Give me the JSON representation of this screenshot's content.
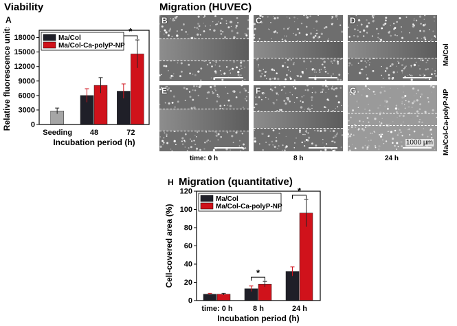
{
  "headers": {
    "viability": "Viability",
    "migration": "Migration (HUVEC)",
    "quantitative": "Migration (quantitative)"
  },
  "colors": {
    "ma_col": "#1f1f28",
    "ma_col_ca": "#d0121b",
    "seeding": "#a6a6a6"
  },
  "micrographs": {
    "panels": [
      {
        "letter": "B",
        "gap": "wide"
      },
      {
        "letter": "C",
        "gap": "narrow"
      },
      {
        "letter": "D",
        "gap": "narrow"
      },
      {
        "letter": "E",
        "gap": "wide"
      },
      {
        "letter": "F",
        "gap": "narrow"
      },
      {
        "letter": "G",
        "gap": "closed"
      }
    ],
    "row_labels": [
      "Ma/Col",
      "Ma/Col-Ca-polyP-NP"
    ],
    "time_labels": [
      "time: 0 h",
      "8 h",
      "24 h"
    ],
    "scale_bar": "1000 µm"
  },
  "chart_data": [
    {
      "type": "bar",
      "panel_label": "A",
      "title": "",
      "xlabel": "Incubation period (h)",
      "ylabel": "Relative fluorescence units",
      "ylim": [
        0,
        19500
      ],
      "yticks": [
        0,
        3000,
        6000,
        9000,
        12000,
        15000,
        18000
      ],
      "categories": [
        "Seeding",
        "48",
        "72"
      ],
      "legend": [
        "Ma/Col",
        "Ma/Col-Ca-polyP-NP"
      ],
      "legend_position": "top-left",
      "series": [
        {
          "name": "Seeding",
          "color": "seeding",
          "points": [
            {
              "category": "Seeding",
              "value": 2800,
              "error": 600
            }
          ]
        },
        {
          "name": "Ma/Col",
          "color": "ma_col",
          "points": [
            {
              "category": "48",
              "value": 6000,
              "error": 1400
            },
            {
              "category": "72",
              "value": 6900,
              "error": 1500
            }
          ]
        },
        {
          "name": "Ma/Col-Ca-polyP-NP",
          "color": "ma_col_ca",
          "points": [
            {
              "category": "48",
              "value": 8100,
              "error": 1600
            },
            {
              "category": "72",
              "value": 14600,
              "error": 2900
            }
          ]
        }
      ],
      "significance": [
        {
          "category": "72",
          "label": "*"
        }
      ]
    },
    {
      "type": "bar",
      "panel_label": "H",
      "title": "Migration (quantitative)",
      "xlabel": "Incubation period (h)",
      "ylabel": "Cell-covered area (%)",
      "ylim": [
        0,
        120
      ],
      "yticks": [
        0,
        20,
        40,
        60,
        80,
        100,
        120
      ],
      "categories": [
        "time: 0 h",
        "8 h",
        "24 h"
      ],
      "legend": [
        "Ma/Col",
        "Ma/Col-Ca-polyP-NP"
      ],
      "legend_position": "top-left",
      "series": [
        {
          "name": "Ma/Col",
          "color": "ma_col",
          "points": [
            {
              "category": "time: 0 h",
              "value": 7,
              "error": 1
            },
            {
              "category": "8 h",
              "value": 13,
              "error": 3
            },
            {
              "category": "24 h",
              "value": 32,
              "error": 5
            }
          ]
        },
        {
          "name": "Ma/Col-Ca-polyP-NP",
          "color": "ma_col_ca",
          "points": [
            {
              "category": "time: 0 h",
              "value": 7,
              "error": 1
            },
            {
              "category": "8 h",
              "value": 18,
              "error": 3
            },
            {
              "category": "24 h",
              "value": 96,
              "error": 15
            }
          ]
        }
      ],
      "significance": [
        {
          "category": "8 h",
          "label": "*"
        },
        {
          "category": "24 h",
          "label": "*"
        }
      ]
    }
  ]
}
